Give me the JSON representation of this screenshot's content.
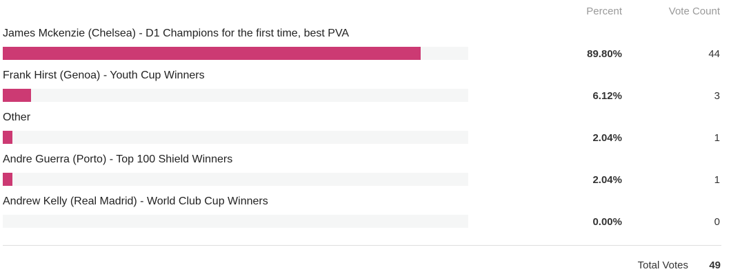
{
  "chart_data": {
    "type": "bar",
    "orientation": "horizontal",
    "columns": {
      "percent": "Percent",
      "vote_count": "Vote Count"
    },
    "bar_color": "#cc3a73",
    "track_color": "#f5f6f6",
    "rows": [
      {
        "label": "James Mckenzie (Chelsea) - D1 Champions for the first time, best PVA",
        "percent": 89.8,
        "percent_label": "89.80%",
        "votes": "44"
      },
      {
        "label": "Frank Hirst (Genoa) - Youth Cup Winners",
        "percent": 6.12,
        "percent_label": "6.12%",
        "votes": "3"
      },
      {
        "label": "Other",
        "percent": 2.04,
        "percent_label": "2.04%",
        "votes": "1"
      },
      {
        "label": "Andre Guerra (Porto) - Top 100 Shield Winners",
        "percent": 2.04,
        "percent_label": "2.04%",
        "votes": "1"
      },
      {
        "label": "Andrew Kelly (Real Madrid) - World Club Cup Winners",
        "percent": 0.0,
        "percent_label": "0.00%",
        "votes": "0"
      }
    ],
    "total": {
      "label": "Total Votes",
      "value": "49"
    }
  }
}
